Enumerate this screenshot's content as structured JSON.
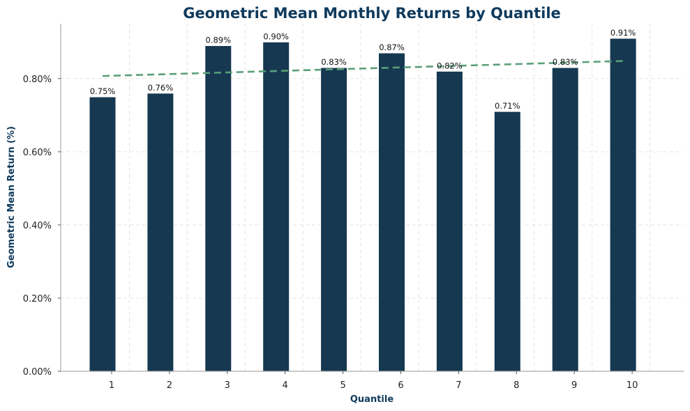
{
  "chart_data": {
    "type": "bar",
    "title": "Geometric Mean Monthly Returns by Quantile",
    "xlabel": "Quantile",
    "ylabel": "Geometric Mean Return (%)",
    "categories": [
      "1",
      "2",
      "3",
      "4",
      "5",
      "6",
      "7",
      "8",
      "9",
      "10"
    ],
    "values": [
      0.75,
      0.76,
      0.89,
      0.9,
      0.83,
      0.87,
      0.82,
      0.71,
      0.83,
      0.91
    ],
    "data_labels": [
      "0.75%",
      "0.76%",
      "0.89%",
      "0.90%",
      "0.83%",
      "0.87%",
      "0.82%",
      "0.71%",
      "0.83%",
      "0.91%"
    ],
    "ylim": [
      0,
      0.95
    ],
    "yticks": [
      0,
      0.2,
      0.4,
      0.6,
      0.8
    ],
    "ytick_labels": [
      "0.00%",
      "0.20%",
      "0.40%",
      "0.60%",
      "0.80%"
    ],
    "trendline": {
      "style": "dashed",
      "start": 0.807,
      "end": 0.848
    },
    "grid": true,
    "colors": {
      "bar": "#163851",
      "trend": "#5a9e78",
      "title": "#0f3a5c"
    }
  }
}
